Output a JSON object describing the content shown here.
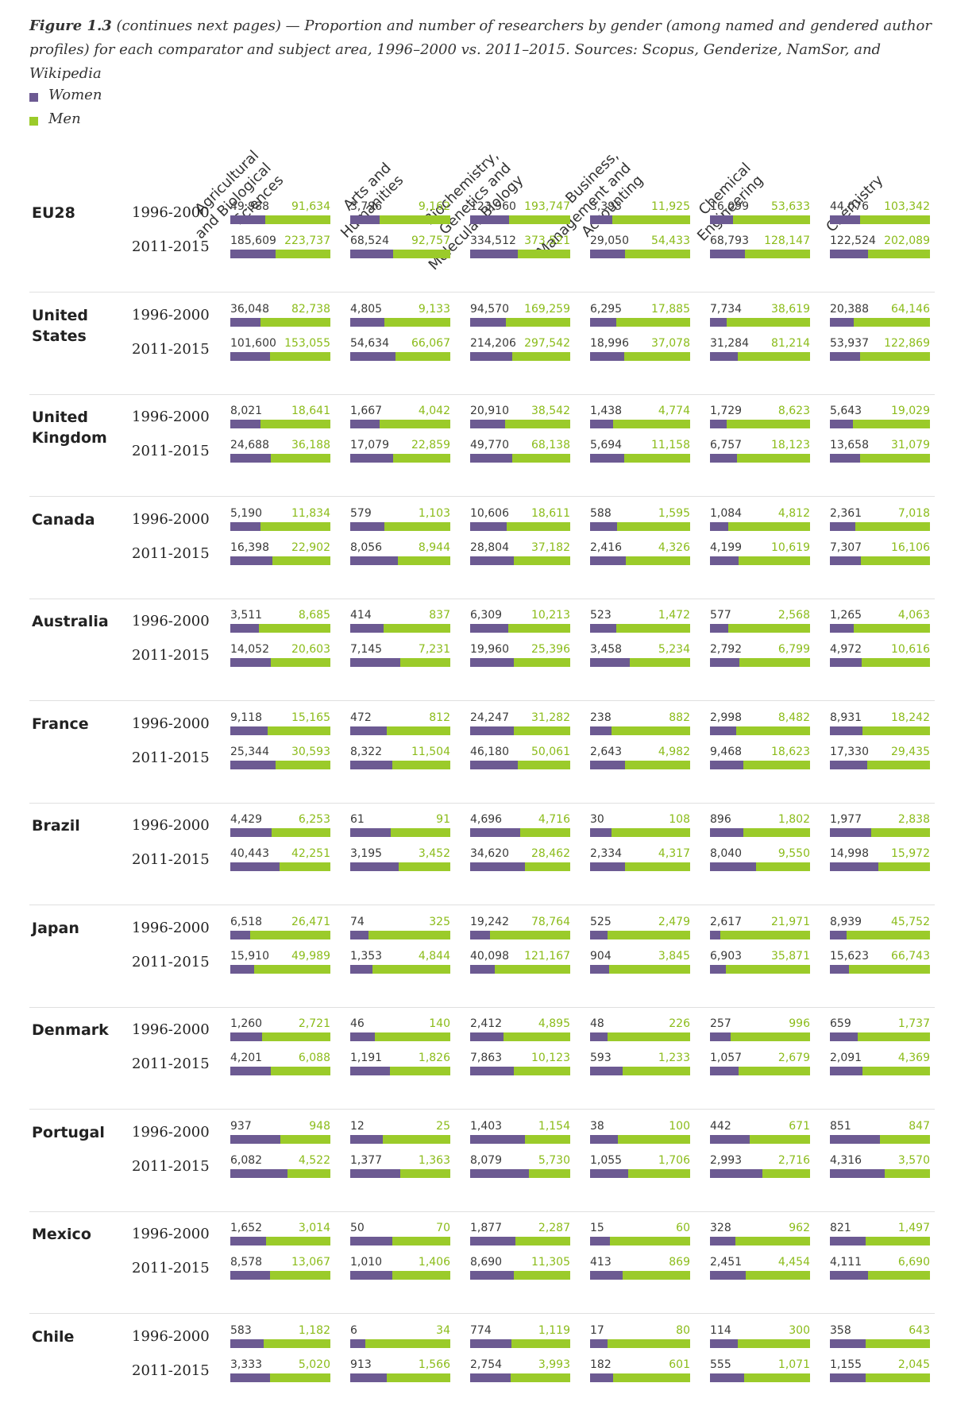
{
  "caption": {
    "label": "Figure 1.3",
    "text": " (continues next pages) — Proportion and number of researchers by gender (among named and gendered author profiles) for each comparator and subject area, 1996–2000 vs. 2011–2015. Sources: Scopus, Genderize, NamSor, and Wikipedia"
  },
  "legend": [
    {
      "label": "Women",
      "color": "#6c5a92"
    },
    {
      "label": "Men",
      "color": "#9bcb2a"
    }
  ],
  "chart_data": {
    "type": "bar",
    "subtype": "stacked-100-percent-horizontal",
    "series_names": [
      "Women",
      "Men"
    ],
    "colors": {
      "Women": "#6c5a92",
      "Men": "#9bcb2a"
    },
    "subject_areas": [
      [
        "Agricultural",
        "and Biological",
        "Sciences"
      ],
      [
        "Arts and",
        "Humanities"
      ],
      [
        "Biochemistry,",
        "Genetics and",
        "Molecular Biology"
      ],
      [
        "Business,",
        "Management and",
        "Accounting"
      ],
      [
        "Chemical",
        "Engineering"
      ],
      [
        "Chemistry"
      ]
    ],
    "periods": [
      "1996-2000",
      "2011-2015"
    ],
    "countries": [
      {
        "name": [
          "EU28"
        ],
        "values": [
          [
            [
              "49,988",
              "91,634"
            ],
            [
              "3,796",
              "9,162"
            ],
            [
              "123,960",
              "193,747"
            ],
            [
              "3,393",
              "11,925"
            ],
            [
              "16,099",
              "53,633"
            ],
            [
              "44,076",
              "103,342"
            ]
          ],
          [
            [
              "185,609",
              "223,737"
            ],
            [
              "68,524",
              "92,757"
            ],
            [
              "334,512",
              "373,521"
            ],
            [
              "29,050",
              "54,433"
            ],
            [
              "68,793",
              "128,147"
            ],
            [
              "122,524",
              "202,089"
            ]
          ]
        ]
      },
      {
        "name": [
          "United",
          "States"
        ],
        "values": [
          [
            [
              "36,048",
              "82,738"
            ],
            [
              "4,805",
              "9,133"
            ],
            [
              "94,570",
              "169,259"
            ],
            [
              "6,295",
              "17,885"
            ],
            [
              "7,734",
              "38,619"
            ],
            [
              "20,388",
              "64,146"
            ]
          ],
          [
            [
              "101,600",
              "153,055"
            ],
            [
              "54,634",
              "66,067"
            ],
            [
              "214,206",
              "297,542"
            ],
            [
              "18,996",
              "37,078"
            ],
            [
              "31,284",
              "81,214"
            ],
            [
              "53,937",
              "122,869"
            ]
          ]
        ]
      },
      {
        "name": [
          "United",
          "Kingdom"
        ],
        "values": [
          [
            [
              "8,021",
              "18,641"
            ],
            [
              "1,667",
              "4,042"
            ],
            [
              "20,910",
              "38,542"
            ],
            [
              "1,438",
              "4,774"
            ],
            [
              "1,729",
              "8,623"
            ],
            [
              "5,643",
              "19,029"
            ]
          ],
          [
            [
              "24,688",
              "36,188"
            ],
            [
              "17,079",
              "22,859"
            ],
            [
              "49,770",
              "68,138"
            ],
            [
              "5,694",
              "11,158"
            ],
            [
              "6,757",
              "18,123"
            ],
            [
              "13,658",
              "31,079"
            ]
          ]
        ]
      },
      {
        "name": [
          "Canada"
        ],
        "values": [
          [
            [
              "5,190",
              "11,834"
            ],
            [
              "579",
              "1,103"
            ],
            [
              "10,606",
              "18,611"
            ],
            [
              "588",
              "1,595"
            ],
            [
              "1,084",
              "4,812"
            ],
            [
              "2,361",
              "7,018"
            ]
          ],
          [
            [
              "16,398",
              "22,902"
            ],
            [
              "8,056",
              "8,944"
            ],
            [
              "28,804",
              "37,182"
            ],
            [
              "2,416",
              "4,326"
            ],
            [
              "4,199",
              "10,619"
            ],
            [
              "7,307",
              "16,106"
            ]
          ]
        ]
      },
      {
        "name": [
          "Australia"
        ],
        "values": [
          [
            [
              "3,511",
              "8,685"
            ],
            [
              "414",
              "837"
            ],
            [
              "6,309",
              "10,213"
            ],
            [
              "523",
              "1,472"
            ],
            [
              "577",
              "2,568"
            ],
            [
              "1,265",
              "4,063"
            ]
          ],
          [
            [
              "14,052",
              "20,603"
            ],
            [
              "7,145",
              "7,231"
            ],
            [
              "19,960",
              "25,396"
            ],
            [
              "3,458",
              "5,234"
            ],
            [
              "2,792",
              "6,799"
            ],
            [
              "4,972",
              "10,616"
            ]
          ]
        ]
      },
      {
        "name": [
          "France"
        ],
        "values": [
          [
            [
              "9,118",
              "15,165"
            ],
            [
              "472",
              "812"
            ],
            [
              "24,247",
              "31,282"
            ],
            [
              "238",
              "882"
            ],
            [
              "2,998",
              "8,482"
            ],
            [
              "8,931",
              "18,242"
            ]
          ],
          [
            [
              "25,344",
              "30,593"
            ],
            [
              "8,322",
              "11,504"
            ],
            [
              "46,180",
              "50,061"
            ],
            [
              "2,643",
              "4,982"
            ],
            [
              "9,468",
              "18,623"
            ],
            [
              "17,330",
              "29,435"
            ]
          ]
        ]
      },
      {
        "name": [
          "Brazil"
        ],
        "values": [
          [
            [
              "4,429",
              "6,253"
            ],
            [
              "61",
              "91"
            ],
            [
              "4,696",
              "4,716"
            ],
            [
              "30",
              "108"
            ],
            [
              "896",
              "1,802"
            ],
            [
              "1,977",
              "2,838"
            ]
          ],
          [
            [
              "40,443",
              "42,251"
            ],
            [
              "3,195",
              "3,452"
            ],
            [
              "34,620",
              "28,462"
            ],
            [
              "2,334",
              "4,317"
            ],
            [
              "8,040",
              "9,550"
            ],
            [
              "14,998",
              "15,972"
            ]
          ]
        ]
      },
      {
        "name": [
          "Japan"
        ],
        "values": [
          [
            [
              "6,518",
              "26,471"
            ],
            [
              "74",
              "325"
            ],
            [
              "19,242",
              "78,764"
            ],
            [
              "525",
              "2,479"
            ],
            [
              "2,617",
              "21,971"
            ],
            [
              "8,939",
              "45,752"
            ]
          ],
          [
            [
              "15,910",
              "49,989"
            ],
            [
              "1,353",
              "4,844"
            ],
            [
              "40,098",
              "121,167"
            ],
            [
              "904",
              "3,845"
            ],
            [
              "6,903",
              "35,871"
            ],
            [
              "15,623",
              "66,743"
            ]
          ]
        ]
      },
      {
        "name": [
          "Denmark"
        ],
        "values": [
          [
            [
              "1,260",
              "2,721"
            ],
            [
              "46",
              "140"
            ],
            [
              "2,412",
              "4,895"
            ],
            [
              "48",
              "226"
            ],
            [
              "257",
              "996"
            ],
            [
              "659",
              "1,737"
            ]
          ],
          [
            [
              "4,201",
              "6,088"
            ],
            [
              "1,191",
              "1,826"
            ],
            [
              "7,863",
              "10,123"
            ],
            [
              "593",
              "1,233"
            ],
            [
              "1,057",
              "2,679"
            ],
            [
              "2,091",
              "4,369"
            ]
          ]
        ]
      },
      {
        "name": [
          "Portugal"
        ],
        "values": [
          [
            [
              "937",
              "948"
            ],
            [
              "12",
              "25"
            ],
            [
              "1,403",
              "1,154"
            ],
            [
              "38",
              "100"
            ],
            [
              "442",
              "671"
            ],
            [
              "851",
              "847"
            ]
          ],
          [
            [
              "6,082",
              "4,522"
            ],
            [
              "1,377",
              "1,363"
            ],
            [
              "8,079",
              "5,730"
            ],
            [
              "1,055",
              "1,706"
            ],
            [
              "2,993",
              "2,716"
            ],
            [
              "4,316",
              "3,570"
            ]
          ]
        ]
      },
      {
        "name": [
          "Mexico"
        ],
        "values": [
          [
            [
              "1,652",
              "3,014"
            ],
            [
              "50",
              "70"
            ],
            [
              "1,877",
              "2,287"
            ],
            [
              "15",
              "60"
            ],
            [
              "328",
              "962"
            ],
            [
              "821",
              "1,497"
            ]
          ],
          [
            [
              "8,578",
              "13,067"
            ],
            [
              "1,010",
              "1,406"
            ],
            [
              "8,690",
              "11,305"
            ],
            [
              "413",
              "869"
            ],
            [
              "2,451",
              "4,454"
            ],
            [
              "4,111",
              "6,690"
            ]
          ]
        ]
      },
      {
        "name": [
          "Chile"
        ],
        "values": [
          [
            [
              "583",
              "1,182"
            ],
            [
              "6",
              "34"
            ],
            [
              "774",
              "1,119"
            ],
            [
              "17",
              "80"
            ],
            [
              "114",
              "300"
            ],
            [
              "358",
              "643"
            ]
          ],
          [
            [
              "3,333",
              "5,020"
            ],
            [
              "913",
              "1,566"
            ],
            [
              "2,754",
              "3,993"
            ],
            [
              "182",
              "601"
            ],
            [
              "555",
              "1,071"
            ],
            [
              "1,155",
              "2,045"
            ]
          ]
        ]
      }
    ]
  }
}
